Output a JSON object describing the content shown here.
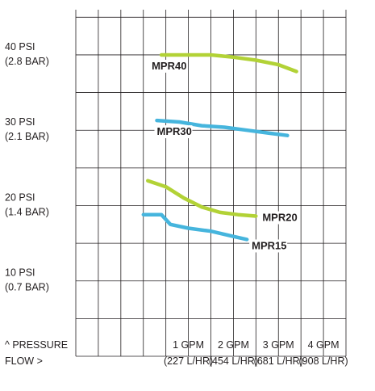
{
  "chart_data": {
    "type": "line",
    "title": "",
    "xlabel": "FLOW >",
    "ylabel": "^ PRESSURE",
    "xlim": [
      -1.5,
      4.5
    ],
    "ylim": [
      0,
      46
    ],
    "grid": true,
    "x_ticks": [
      {
        "value": 1,
        "line1": "1 GPM",
        "line2": "(227 L/HR)"
      },
      {
        "value": 2,
        "line1": "2 GPM",
        "line2": "(454 L/HR)"
      },
      {
        "value": 3,
        "line1": "3 GPM",
        "line2": "(681 L/HR)"
      },
      {
        "value": 4,
        "line1": "4 GPM",
        "line2": "(908 L/HR)"
      }
    ],
    "y_ticks": [
      {
        "value": 40,
        "line1": "40 PSI",
        "line2": "(2.8 BAR)"
      },
      {
        "value": 30,
        "line1": "30 PSI",
        "line2": "(2.1 BAR)"
      },
      {
        "value": 20,
        "line1": "20 PSI",
        "line2": "(1.4 BAR)"
      },
      {
        "value": 10,
        "line1": "10 PSI",
        "line2": "(0.7 BAR)"
      }
    ],
    "series": [
      {
        "name": "MPR40",
        "color": "#b2d236",
        "x": [
          0.4,
          1.0,
          1.5,
          2.0,
          2.5,
          3.0,
          3.4
        ],
        "y": [
          40.0,
          40.0,
          40.0,
          39.7,
          39.3,
          38.7,
          37.8
        ]
      },
      {
        "name": "MPR30",
        "color": "#46b5dd",
        "x": [
          0.3,
          0.8,
          1.3,
          1.8,
          2.3,
          2.8,
          3.2
        ],
        "y": [
          31.3,
          31.1,
          30.6,
          30.4,
          30.0,
          29.6,
          29.3
        ]
      },
      {
        "name": "MPR20",
        "color": "#b2d236",
        "x": [
          0.1,
          0.5,
          0.9,
          1.3,
          1.7,
          2.1,
          2.5
        ],
        "y": [
          23.3,
          22.5,
          21.0,
          19.8,
          19.1,
          18.8,
          18.6
        ]
      },
      {
        "name": "MPR15",
        "color": "#46b5dd",
        "x": [
          0.0,
          0.4,
          0.6,
          1.0,
          1.5,
          2.0,
          2.3
        ],
        "y": [
          18.8,
          18.8,
          17.5,
          17.0,
          16.6,
          15.9,
          15.5
        ]
      }
    ]
  }
}
